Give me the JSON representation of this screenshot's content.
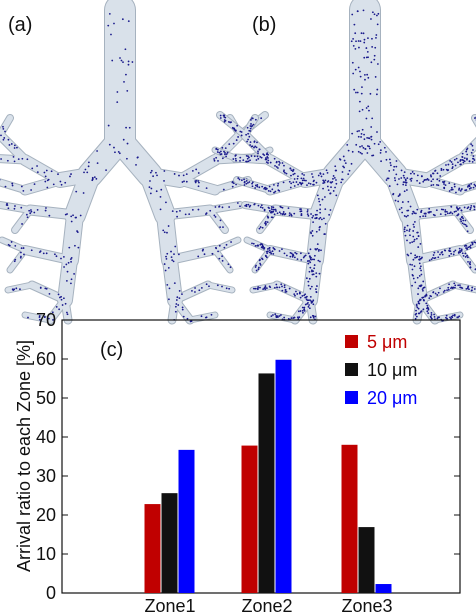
{
  "panels": {
    "a_label": "(a)",
    "b_label": "(b)",
    "c_label": "(c)"
  },
  "colors": {
    "airway": "#d9e1ea",
    "airway_edge": "#a6b2bf",
    "particle": "#1a1a8c"
  },
  "chart_data": {
    "type": "bar",
    "categories": [
      "Zone1",
      "Zone2",
      "Zone3"
    ],
    "series": [
      {
        "name": "5 μm",
        "values": [
          22.8,
          37.8,
          38.0
        ],
        "color": "#c00000"
      },
      {
        "name": "10 μm",
        "values": [
          25.6,
          56.3,
          16.9
        ],
        "color": "#111111"
      },
      {
        "name": "20 μm",
        "values": [
          36.7,
          59.8,
          2.3
        ],
        "color": "#0000ff"
      }
    ],
    "ylabel": "Arrival ratio to each Zone [%]",
    "xlabel": "",
    "ylim": [
      0,
      70
    ],
    "yticks": [
      0,
      10,
      20,
      30,
      40,
      50,
      60,
      70
    ],
    "grid": false,
    "legend_position": "top-right"
  }
}
